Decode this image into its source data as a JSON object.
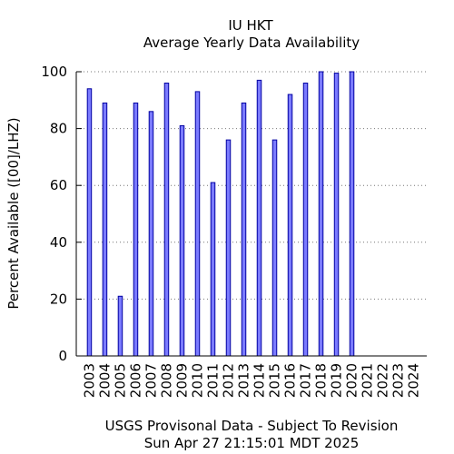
{
  "chart_data": {
    "type": "bar",
    "title": "IU HKT",
    "subtitle": "Average Yearly Data Availability",
    "ylabel": "Percent Available ([00]/LHZ)",
    "xlabel": "USGS Provisonal Data - Subject To Revision",
    "footer": "Sun Apr 27 21:15:01 MDT 2025",
    "ylim": [
      0,
      100
    ],
    "yticks": [
      0,
      20,
      40,
      60,
      80,
      100
    ],
    "ytick_labels": [
      "0",
      "20",
      "40",
      "60",
      "80",
      "100"
    ],
    "grid": "horizontal-dotted",
    "categories": [
      "2003",
      "2004",
      "2005",
      "2006",
      "2007",
      "2008",
      "2009",
      "2010",
      "2011",
      "2012",
      "2013",
      "2014",
      "2015",
      "2016",
      "2017",
      "2018",
      "2019",
      "2020",
      "2021",
      "2022",
      "2023",
      "2024"
    ],
    "values": [
      94,
      89,
      21,
      89,
      86,
      96,
      81,
      93,
      61,
      76,
      89,
      97,
      76,
      92,
      96,
      100,
      99.5,
      100,
      null,
      null,
      null,
      null
    ],
    "colors": {
      "bar_fill": "#7b7bff",
      "bar_stroke": "#0000a0"
    }
  }
}
